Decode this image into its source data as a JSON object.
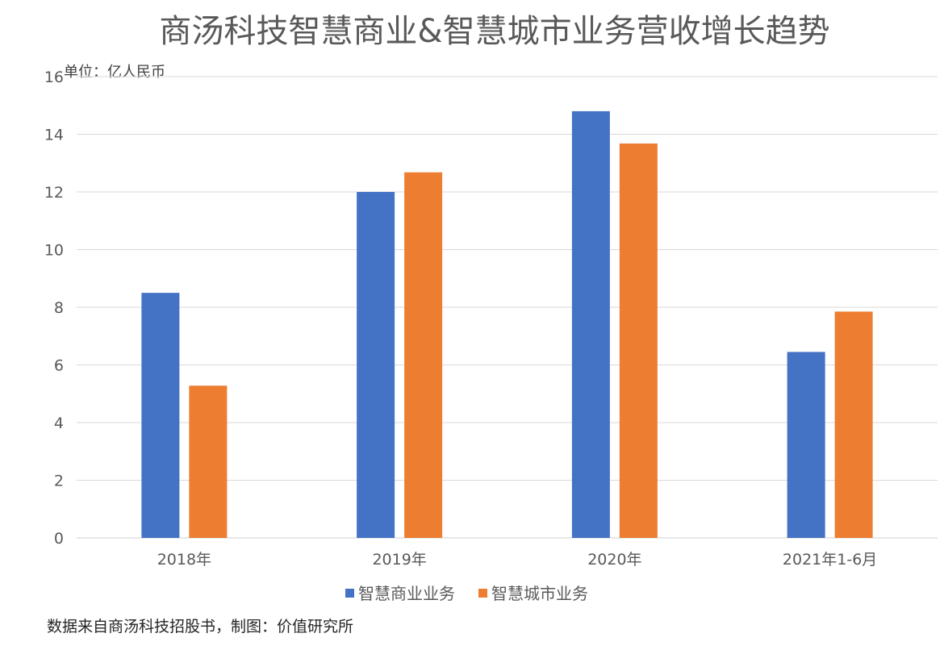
{
  "chart_data": {
    "type": "bar",
    "title": "商汤科技智慧商业&智慧城市业务营收增长趋势",
    "unit_label": "单位：亿人民币",
    "categories": [
      "2018年",
      "2019年",
      "2020年",
      "2021年1-6月"
    ],
    "ylim": [
      0,
      16
    ],
    "y_ticks": [
      0,
      2,
      4,
      6,
      8,
      10,
      12,
      14,
      16
    ],
    "grid": true,
    "legend_position": "bottom",
    "series": [
      {
        "name": "智慧商业业务",
        "color": "#4472C4",
        "values": [
          8.5,
          12.0,
          14.8,
          6.45
        ]
      },
      {
        "name": "智慧城市业务",
        "color": "#ED7D31",
        "values": [
          5.28,
          12.68,
          13.68,
          7.85
        ]
      }
    ]
  },
  "source_note": "数据来自商汤科技招股书，制图：价值研究所"
}
